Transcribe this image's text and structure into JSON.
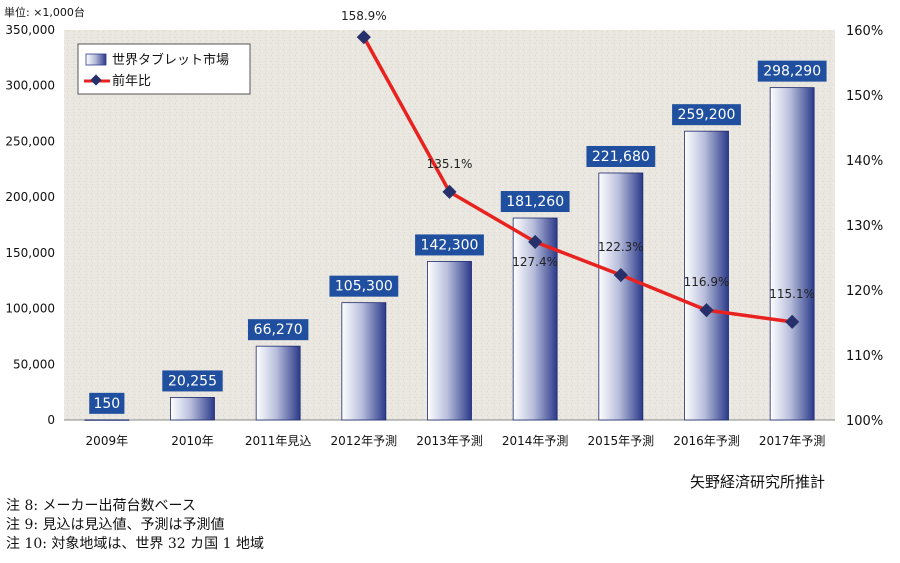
{
  "chart_data": {
    "type": "bar",
    "unit_label": "単位: ×1,000台",
    "categories": [
      "2009年",
      "2010年",
      "2011年見込",
      "2012年予測",
      "2013年予測",
      "2014年予測",
      "2015年予測",
      "2016年予測",
      "2017年予測"
    ],
    "series": [
      {
        "name": "世界タブレット市場",
        "type": "bar",
        "axis": "left",
        "values": [
          150,
          20255,
          66270,
          105300,
          142300,
          181260,
          221680,
          259200,
          298290
        ],
        "labels": [
          "150",
          "20,255",
          "66,270",
          "105,300",
          "142,300",
          "181,260",
          "221,680",
          "259,200",
          "298,290"
        ]
      },
      {
        "name": "前年比",
        "type": "line",
        "axis": "right",
        "values": [
          null,
          null,
          null,
          158.9,
          135.1,
          127.4,
          122.3,
          116.9,
          115.1
        ],
        "labels": [
          "",
          "",
          "",
          "158.9%",
          "135.1%",
          "127.4%",
          "122.3%",
          "116.9%",
          "115.1%"
        ]
      }
    ],
    "y_left": {
      "range": [
        0,
        350000
      ],
      "ticks": [
        "0",
        "50,000",
        "100,000",
        "150,000",
        "200,000",
        "250,000",
        "300,000",
        "350,000"
      ]
    },
    "y_right": {
      "range": [
        100,
        160
      ],
      "ticks": [
        "100%",
        "110%",
        "120%",
        "130%",
        "140%",
        "150%",
        "160%"
      ]
    },
    "legend_position": "top-left",
    "colors": {
      "bar_dark": "#2b3a8a",
      "bar_light": "#ffffff",
      "label_box": "#1f4f9e",
      "line": "#e8231f",
      "marker": "#27306b",
      "plot_bg": "#e8e6df"
    }
  },
  "source": "矢野経済研究所推計",
  "notes": [
    "注 8:  メーカー出荷台数ベース",
    "注 9:  見込は見込値、予測は予測値",
    "注 10:  対象地域は、世界 32 カ国 1 地域"
  ]
}
